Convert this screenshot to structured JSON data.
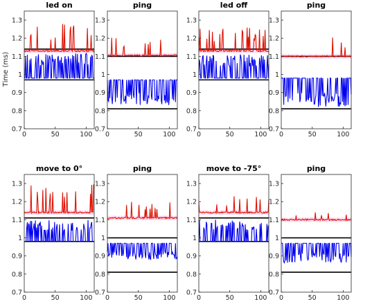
{
  "figure": {
    "ylabel": "Time (ms)",
    "xlim": [
      0,
      113
    ],
    "ylim": [
      0.7,
      1.35
    ],
    "xticks": [
      0,
      50,
      100
    ],
    "yticks": [
      0.7,
      0.8,
      0.9,
      1,
      1.1,
      1.2,
      1.3
    ],
    "colors": {
      "red": "#dd1100",
      "blue": "#0000ee",
      "ref": "#000000",
      "band": "#ffccee"
    }
  },
  "chart_data": [
    {
      "type": "line",
      "title": "led on",
      "red_base": 1.13,
      "red_peak": 1.28,
      "blue_base": 0.98,
      "blue_peak": 1.12,
      "ref_top": 1.14,
      "ref_bot": 0.97,
      "blue_dir": 1,
      "red_freq": 0.45
    },
    {
      "type": "line",
      "title": "ping",
      "red_base": 1.105,
      "red_peak": 1.21,
      "blue_base": 0.97,
      "blue_peak": 0.83,
      "ref_top": 1.1,
      "ref_bot": 0.81,
      "blue_dir": -1,
      "red_freq": 0.3
    },
    {
      "type": "line",
      "title": "led off",
      "red_base": 1.13,
      "red_peak": 1.26,
      "blue_base": 0.98,
      "blue_peak": 1.11,
      "ref_top": 1.14,
      "ref_bot": 0.97,
      "blue_dir": 1,
      "red_freq": 0.45
    },
    {
      "type": "line",
      "title": "ping",
      "red_base": 1.1,
      "red_peak": 1.21,
      "blue_base": 0.98,
      "blue_peak": 0.82,
      "ref_top": 1.1,
      "ref_bot": 0.81,
      "blue_dir": -1,
      "red_freq": 0.15
    },
    {
      "type": "line",
      "title": "move to 0°",
      "red_base": 1.14,
      "red_peak": 1.3,
      "blue_base": 0.98,
      "blue_peak": 1.1,
      "ref_top": 1.11,
      "ref_bot": 0.98,
      "blue_dir": 1,
      "red_freq": 0.5
    },
    {
      "type": "line",
      "title": "ping",
      "red_base": 1.11,
      "red_peak": 1.2,
      "blue_base": 0.97,
      "blue_peak": 0.88,
      "ref_top": 1.0,
      "ref_bot": 0.81,
      "blue_dir": -1,
      "red_freq": 0.55
    },
    {
      "type": "line",
      "title": "move to -75°",
      "red_base": 1.14,
      "red_peak": 1.23,
      "blue_base": 0.98,
      "blue_peak": 1.1,
      "ref_top": 1.11,
      "ref_bot": 0.98,
      "blue_dir": 1,
      "red_freq": 0.45
    },
    {
      "type": "line",
      "title": "ping",
      "red_base": 1.1,
      "red_peak": 1.15,
      "blue_base": 0.97,
      "blue_peak": 0.86,
      "ref_top": 1.0,
      "ref_bot": 0.81,
      "blue_dir": -1,
      "red_freq": 0.25
    }
  ]
}
